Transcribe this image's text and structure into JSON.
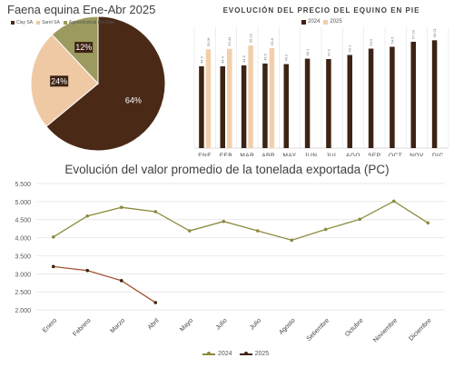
{
  "chart_data": [
    {
      "type": "pie",
      "title": "Faena equina Ene-Abr 2025",
      "slices": [
        {
          "name": "Clay SA",
          "value": 64,
          "label": "64%",
          "color": "#4a2a17"
        },
        {
          "name": "Sarel SA",
          "value": 24,
          "label": "24%",
          "color": "#efc9a4"
        },
        {
          "name": "Agroindustrial del Este",
          "value": 12,
          "label": "12%",
          "color": "#9c9b5f"
        }
      ]
    },
    {
      "type": "bar",
      "title": "EVOLUCIÓN DEL PRECIO DEL EQUINO EN PIE",
      "categories": [
        "ENE",
        "FEB",
        "MAR",
        "ABR",
        "MAY",
        "JUN",
        "JUL",
        "AGO",
        "SEP",
        "OCT",
        "NOV",
        "DIC"
      ],
      "series": [
        {
          "name": "2024",
          "color": "#3d2314",
          "values": [
            44.0,
            44.0,
            44.5,
            45.5,
            45.2,
            48.1,
            47.9,
            50.1,
            53.5,
            54.5,
            57.2,
            58.0
          ],
          "labels": [
            "44.0",
            "44.0",
            "44.5",
            "45.5",
            "45.2",
            "48.1",
            "47.9",
            "50.1",
            "53.5",
            "54.5",
            "57.20",
            "58.01"
          ]
        },
        {
          "name": "2025",
          "color": "#f2cfab",
          "values": [
            53.1,
            53.4,
            55.2,
            53.8,
            null,
            null,
            null,
            null,
            null,
            null,
            null,
            null
          ],
          "labels": [
            "53.06",
            "53.44",
            "55.16",
            "53.8",
            "",
            "",
            "",
            "",
            "",
            "",
            "",
            ""
          ]
        }
      ],
      "ylim": [
        0,
        65
      ],
      "grid": "vertical"
    },
    {
      "type": "line",
      "title": "Evolución del valor promedio de la tonelada exportada (PC)",
      "categories": [
        "Enero",
        "Febrero",
        "Marzo",
        "Abril",
        "Mayo",
        "Julio",
        "Julio",
        "Agosto",
        "Setiembre",
        "Octubre",
        "Noviembre",
        "Diciembre"
      ],
      "series": [
        {
          "name": "2024",
          "color": "#8c8a3e",
          "values": [
            4020,
            4600,
            4840,
            4720,
            4190,
            4450,
            4190,
            3930,
            4230,
            4510,
            5010,
            4410
          ]
        },
        {
          "name": "2025",
          "color": "#a0522d",
          "marker_color": "#3d2314",
          "values": [
            3200,
            3090,
            2810,
            2200,
            null,
            null,
            null,
            null,
            null,
            null,
            null,
            null
          ]
        }
      ],
      "yticks": [
        "2.000",
        "2.500",
        "3.000",
        "3.500",
        "4.000",
        "4.500",
        "5.000",
        "5.500"
      ],
      "ylim": [
        2000,
        5500
      ],
      "grid": "horizontal",
      "legend_position": "bottom"
    }
  ]
}
